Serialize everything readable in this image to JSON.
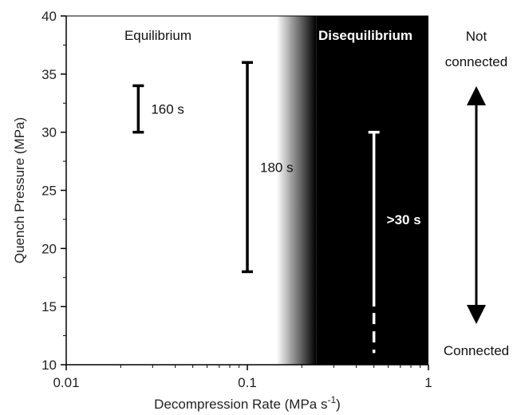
{
  "chart_data": {
    "type": "range",
    "xlabel": "Decompression Rate (MPa s",
    "xlabel_sup": "-1",
    "xlabel_close": ")",
    "ylabel": "Quench Pressure (MPa)",
    "xscale": "log",
    "xlim": [
      0.01,
      1
    ],
    "ylim": [
      10,
      40
    ],
    "xticks": [
      {
        "value": 0.01,
        "label": "0.01"
      },
      {
        "value": 0.1,
        "label": "0.1"
      },
      {
        "value": 1,
        "label": "1"
      }
    ],
    "yticks": [
      10,
      15,
      20,
      25,
      30,
      35,
      40
    ],
    "regions": [
      {
        "label": "Equilibrium",
        "color": "#ffffff",
        "text_color": "#111111",
        "bold": false
      },
      {
        "label": "Disequilibrium",
        "color": "#000000",
        "text_color": "#ffffff",
        "bold": true,
        "fade_from": 0.145,
        "fade_to": 0.24
      }
    ],
    "ranges": [
      {
        "x": 0.025,
        "y_low": 30,
        "y_high": 34,
        "label": "160 s",
        "color": "#000000",
        "text_color": "#111111",
        "bold": false
      },
      {
        "x": 0.1,
        "y_low": 18,
        "y_high": 36,
        "label": "180 s",
        "color": "#000000",
        "text_color": "#111111",
        "bold": false
      },
      {
        "x": 0.5,
        "y_low": 15,
        "y_high": 30,
        "label": ">30 s",
        "color": "#ffffff",
        "text_color": "#ffffff",
        "bold": true,
        "dashed_below": 11
      }
    ],
    "arrow": {
      "top_label_1": "Not",
      "top_label_2": "connected",
      "bottom_label": "Connected"
    }
  }
}
